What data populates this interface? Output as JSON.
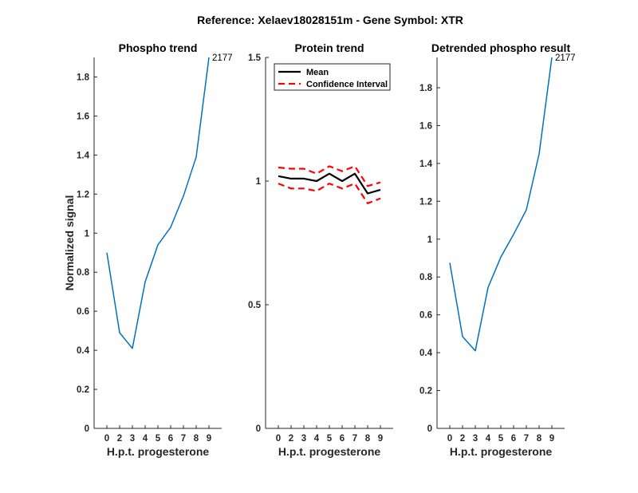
{
  "figure": {
    "suptitle": "Reference:  Xelaev18028151m - Gene Symbol:  XTR"
  },
  "chart_data": [
    {
      "type": "line",
      "title": "Phospho trend",
      "xlabel": "H.p.t. progesterone",
      "ylabel": "Normalized signal",
      "x_ticks": [
        "0",
        "2",
        "3",
        "4",
        "5",
        "6",
        "7",
        "8",
        "9"
      ],
      "y_ticks": [
        "0",
        "0.2",
        "0.4",
        "0.6",
        "0.8",
        "1",
        "1.2",
        "1.4",
        "1.6",
        "1.8"
      ],
      "ylim": [
        0,
        1.9
      ],
      "series": [
        {
          "color": "#0072BD",
          "values": [
            0.9,
            0.49,
            0.41,
            0.75,
            0.94,
            1.03,
            1.19,
            1.39,
            1.9
          ]
        }
      ],
      "annotation": {
        "text": "2177",
        "index": 8
      }
    },
    {
      "type": "line",
      "title": "Protein trend",
      "xlabel": "H.p.t. progesterone",
      "ylabel": "",
      "x_ticks": [
        "0",
        "2",
        "3",
        "4",
        "5",
        "6",
        "7",
        "8",
        "9"
      ],
      "y_ticks": [
        "0",
        "0.5",
        "1",
        "1.5"
      ],
      "ylim": [
        0,
        1.5
      ],
      "legend": {
        "placement": "top-left",
        "entries": [
          "Mean",
          "Confidence Interval"
        ]
      },
      "series": [
        {
          "name": "Mean",
          "color": "#000000",
          "dash": false,
          "values": [
            1.02,
            1.01,
            1.01,
            1.0,
            1.03,
            1.0,
            1.03,
            0.95,
            0.965
          ]
        },
        {
          "name": "Confidence Interval",
          "color": "#FF0000",
          "dash": true,
          "values": [
            1.055,
            1.05,
            1.05,
            1.03,
            1.06,
            1.04,
            1.06,
            0.98,
            0.995
          ]
        },
        {
          "name": "Confidence Interval",
          "color": "#FF0000",
          "dash": true,
          "hide_legend": true,
          "values": [
            0.99,
            0.97,
            0.97,
            0.96,
            0.99,
            0.97,
            0.99,
            0.91,
            0.93
          ]
        }
      ]
    },
    {
      "type": "line",
      "title": "Detrended phospho result",
      "xlabel": "H.p.t. progesterone",
      "ylabel": "",
      "x_ticks": [
        "0",
        "2",
        "3",
        "4",
        "5",
        "6",
        "7",
        "8",
        "9"
      ],
      "y_ticks": [
        "0",
        "0.2",
        "0.4",
        "0.6",
        "0.8",
        "1",
        "1.2",
        "1.4",
        "1.6",
        "1.8"
      ],
      "ylim": [
        0,
        1.96
      ],
      "series": [
        {
          "color": "#0072BD",
          "values": [
            0.875,
            0.485,
            0.41,
            0.745,
            0.905,
            1.025,
            1.155,
            1.45,
            1.96
          ]
        }
      ],
      "annotation": {
        "text": "2177",
        "index": 8
      }
    }
  ]
}
